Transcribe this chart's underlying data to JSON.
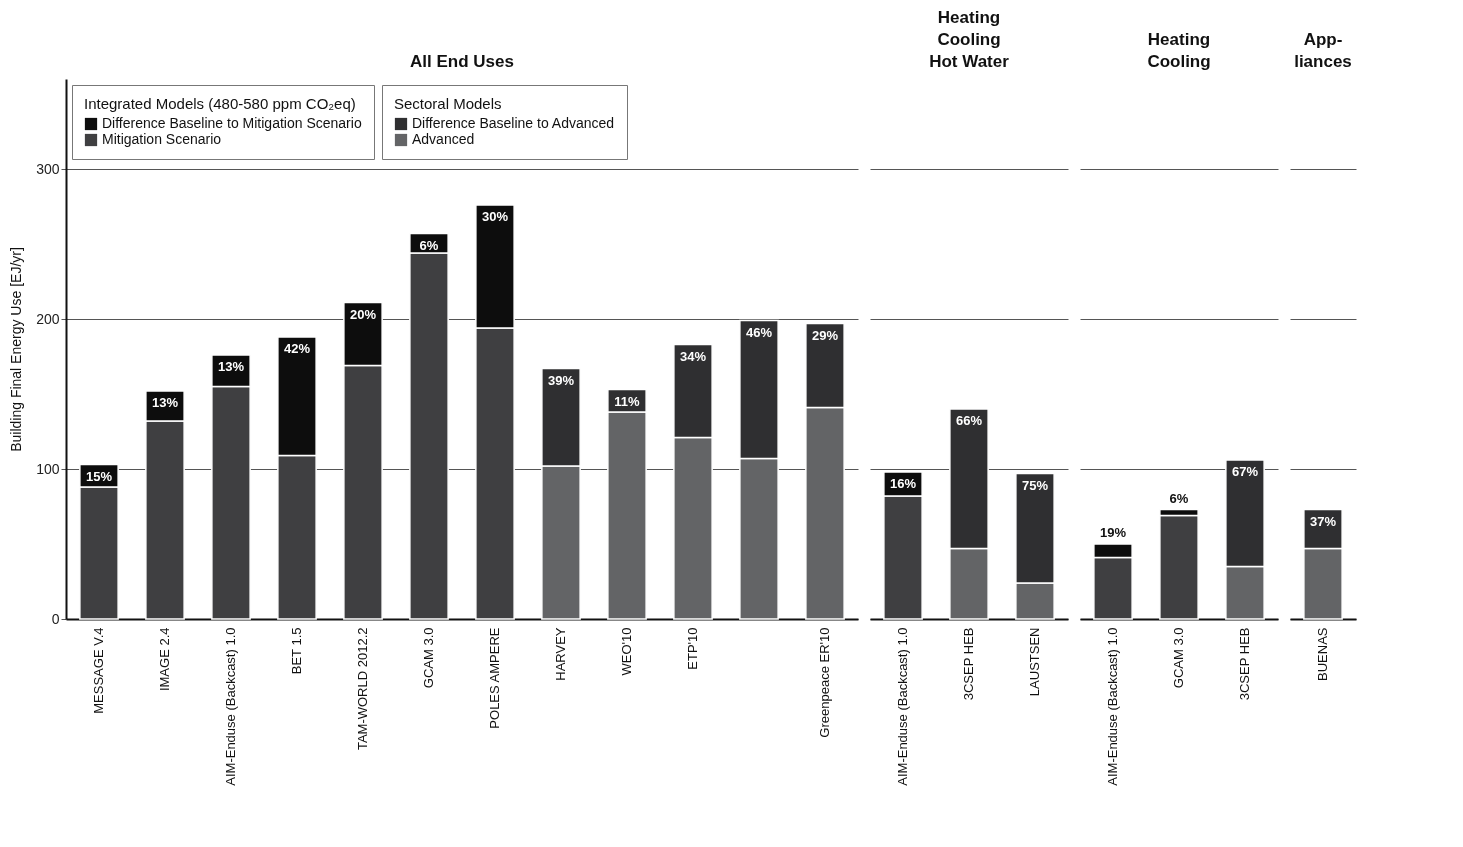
{
  "chart_data": [
    {
      "type": "bar",
      "stacked": true,
      "title": "All End Uses",
      "ylabel": "Building Final Energy Use [EJ/yr]",
      "legend_title": "Integrated Models (480-580 ppm CO₂eq)",
      "legend": "top left",
      "grid": "y",
      "ylim": [
        0,
        360
      ],
      "yticks": [
        0,
        100,
        200,
        300
      ],
      "categories": [
        "MESSAGE V.4",
        "IMAGE 2.4",
        "AIM-Enduse (Backcast) 1.0",
        "BET 1.5",
        "TAM-WORLD 2012.2",
        "GCAM 3.0",
        "POLES AMPERE",
        "HARVEY",
        "WEO'10",
        "ETP'10",
        null,
        "Greenpeace ER'10"
      ],
      "series": [
        {
          "name": "Mitigation Scenario",
          "color": "#3f3f41",
          "values": [
            88,
            132,
            155,
            109,
            169,
            244,
            194,
            null,
            null,
            null,
            null,
            null
          ]
        },
        {
          "name": "Difference Baseline to Mitigation Scenario",
          "color": "#0d0d0d",
          "values": [
            15,
            20,
            21,
            79,
            42,
            13,
            82,
            null,
            null,
            null,
            null,
            null
          ]
        },
        {
          "name": "Advanced",
          "color": "#636466",
          "values": [
            null,
            null,
            null,
            null,
            null,
            null,
            null,
            102,
            138,
            121,
            107,
            141
          ]
        },
        {
          "name": "Difference Baseline to Advanced",
          "color": "#2f2f31",
          "values": [
            null,
            null,
            null,
            null,
            null,
            null,
            null,
            65,
            15,
            62,
            92,
            56
          ]
        }
      ],
      "annotations": [
        "Sectoral Models",
        {
          "text": "15%",
          "x": "MESSAGE V.4",
          "y": 103
        },
        {
          "text": "13%",
          "x": "IMAGE 2.4",
          "y": 152
        },
        {
          "text": "13%",
          "x": "AIM-Enduse (Backcast) 1.0",
          "y": 176
        },
        {
          "text": "42%",
          "x": "BET 1.5",
          "y": 188
        },
        {
          "text": "20%",
          "x": "TAM-WORLD 2012.2",
          "y": 211
        },
        {
          "text": "6%",
          "x": "GCAM 3.0",
          "y": 257
        },
        {
          "text": "30%",
          "x": "POLES AMPERE",
          "y": 276
        },
        {
          "text": "39%",
          "x": "HARVEY",
          "y": 167
        },
        {
          "text": "11%",
          "x": "WEO'10",
          "y": 153
        },
        {
          "text": "34%",
          "x": "ETP'10",
          "y": 183
        },
        {
          "text": "46%",
          "y": 199
        },
        {
          "text": "29%",
          "x": "Greenpeace ER'10",
          "y": 197
        }
      ]
    },
    {
      "type": "bar",
      "stacked": true,
      "title": "Heating\nCooling\nHot Water",
      "grid": "y",
      "tick_labels": "x",
      "yticks": [
        0,
        100,
        200,
        300
      ],
      "categories": [
        "AIM-Enduse (Backcast) 1.0",
        "3CSEP HEB",
        "LAUSTSEN"
      ],
      "series": [
        {
          "color": "#3f3f41",
          "values": [
            82,
            null,
            null
          ]
        },
        {
          "color": "#0d0d0d",
          "values": [
            16,
            null,
            null
          ]
        },
        {
          "color": "#636466",
          "values": [
            null,
            47,
            24
          ]
        },
        {
          "color": "#2f2f31",
          "values": [
            null,
            93,
            73
          ]
        }
      ],
      "annotations": [
        {
          "text": "16%",
          "x": "AIM-Enduse (Backcast) 1.0",
          "y": 98
        },
        {
          "text": "66%",
          "x": "3CSEP HEB",
          "y": 140
        },
        {
          "text": "75%",
          "x": "LAUSTSEN",
          "y": 97
        }
      ]
    },
    {
      "type": "bar",
      "stacked": true,
      "title": "Heating\nCooling",
      "grid": "y",
      "tick_labels": "x",
      "yticks": [
        0,
        100,
        200,
        300
      ],
      "categories": [
        "AIM-Enduse (Backcast) 1.0",
        "GCAM 3.0",
        "3CSEP HEB"
      ],
      "series": [
        {
          "color": "#3f3f41",
          "values": [
            41,
            69,
            null
          ]
        },
        {
          "color": "#0d0d0d",
          "values": [
            9,
            4,
            null
          ]
        },
        {
          "color": "#636466",
          "values": [
            null,
            null,
            35
          ]
        },
        {
          "color": "#2f2f31",
          "values": [
            null,
            null,
            71
          ]
        }
      ],
      "annotations": [
        {
          "text": "19%",
          "x": "AIM-Enduse (Backcast) 1.0",
          "y": 50
        },
        {
          "text": "6%",
          "x": "GCAM 3.0",
          "y": 73
        },
        {
          "text": "67%",
          "x": "3CSEP HEB",
          "y": 106
        }
      ]
    },
    {
      "type": "bar",
      "stacked": true,
      "title": "App-\nliances",
      "grid": "y",
      "tick_labels": "x",
      "yticks": [
        0,
        100,
        200,
        300
      ],
      "categories": [
        "BUENAS"
      ],
      "series": [
        {
          "color": "#636466",
          "values": [
            47
          ]
        },
        {
          "color": "#2f2f31",
          "values": [
            26
          ]
        }
      ],
      "annotations": [
        {
          "text": "37%",
          "x": "BUENAS",
          "y": 73
        }
      ]
    }
  ]
}
